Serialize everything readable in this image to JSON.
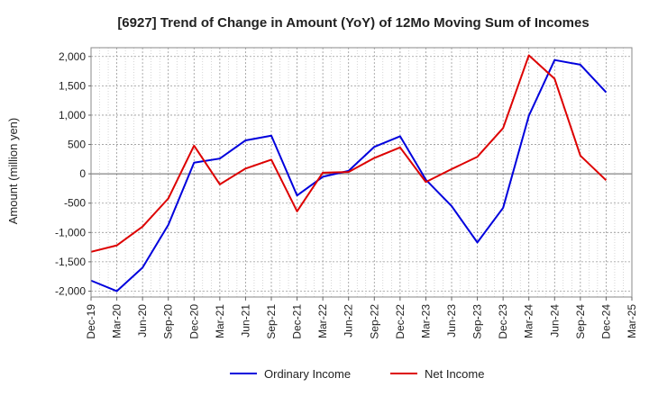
{
  "chart_data": {
    "type": "line",
    "title": "[6927]  Trend of Change in Amount (YoY) of 12Mo Moving Sum of Incomes",
    "xlabel": "",
    "ylabel": "Amount (million yen)",
    "ylim": [
      -2100,
      2150
    ],
    "yticks": [
      -2000,
      -1500,
      -1000,
      -500,
      0,
      500,
      1000,
      1500,
      2000
    ],
    "ytick_labels": [
      "-2,000",
      "-1,500",
      "-1,000",
      "-500",
      "0",
      "500",
      "1,000",
      "1,500",
      "2,000"
    ],
    "categories": [
      "Dec-19",
      "Mar-20",
      "Jun-20",
      "Sep-20",
      "Dec-20",
      "Mar-21",
      "Jun-21",
      "Sep-21",
      "Dec-21",
      "Mar-22",
      "Jun-22",
      "Sep-22",
      "Dec-22",
      "Mar-23",
      "Jun-23",
      "Sep-23",
      "Dec-23",
      "Mar-24",
      "Jun-24",
      "Sep-24",
      "Dec-24",
      "Mar-25"
    ],
    "grid": true,
    "legend_position": "bottom",
    "series": [
      {
        "name": "Ordinary Income",
        "color": "#0000dd",
        "values": [
          -1820,
          -2000,
          -1600,
          -870,
          190,
          260,
          570,
          650,
          -370,
          -50,
          50,
          460,
          640,
          -100,
          -550,
          -1170,
          -580,
          990,
          1940,
          1860,
          1390,
          null
        ]
      },
      {
        "name": "Net Income",
        "color": "#dd0000",
        "values": [
          -1330,
          -1220,
          -900,
          -420,
          480,
          -180,
          90,
          240,
          -640,
          20,
          30,
          270,
          450,
          -140,
          80,
          290,
          780,
          2020,
          1620,
          310,
          -110,
          null
        ]
      }
    ]
  }
}
